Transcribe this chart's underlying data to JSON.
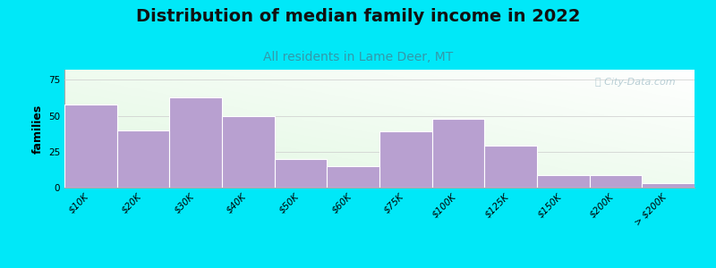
{
  "title": "Distribution of median family income in 2022",
  "subtitle": "All residents in Lame Deer, MT",
  "ylabel": "families",
  "bin_edges": [
    0,
    10,
    20,
    30,
    40,
    50,
    60,
    75,
    100,
    125,
    150,
    200,
    250
  ],
  "bin_labels": [
    "$10K",
    "$20K",
    "$30K",
    "$40K",
    "$50K",
    "$60K",
    "$75K",
    "$100K",
    "$125K",
    "$150K",
    "$200K",
    "> $200K"
  ],
  "values": [
    58,
    40,
    63,
    50,
    20,
    15,
    39,
    48,
    29,
    9,
    9,
    3
  ],
  "bar_color": "#b8a0d0",
  "bar_edgecolor": "#ffffff",
  "background_outer": "#00e8f8",
  "yticks": [
    0,
    25,
    50,
    75
  ],
  "ylim": [
    0,
    82
  ],
  "title_fontsize": 14,
  "subtitle_fontsize": 10,
  "subtitle_color": "#3399aa",
  "ylabel_fontsize": 9,
  "tick_fontsize": 7.5,
  "watermark_text": "ⓘ City-Data.com",
  "watermark_color": "#b0c8d0"
}
